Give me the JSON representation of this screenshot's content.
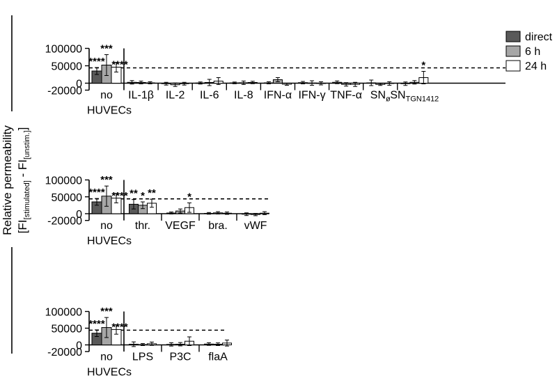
{
  "ylabel_line1": "Relative permeability",
  "ylabel_line2_parts": [
    "[FI",
    "[stimulated]",
    " - FI",
    "[unstim.]",
    "]"
  ],
  "legend": {
    "position": "top-right",
    "entries": [
      {
        "label": "direct",
        "color": "#595959"
      },
      {
        "label": "6 h",
        "color": "#a6a6a6"
      },
      {
        "label": "24 h",
        "color": "#ffffff"
      }
    ]
  },
  "colors": {
    "direct": "#595959",
    "6h": "#a6a6a6",
    "24h": "#ffffff",
    "ink": "#000000"
  },
  "chart_data": [
    {
      "type": "bar",
      "title": "",
      "ylim": [
        -20000,
        100000
      ],
      "yticks": [
        -20000,
        0,
        50000,
        100000
      ],
      "ytick_labels": [
        "-20000",
        "0",
        "50000",
        "100000"
      ],
      "threshold": 44000,
      "categories": [
        {
          "label": "no",
          "label2": "HUVECs",
          "values": [
            35000,
            52000,
            46000
          ],
          "errors": [
            10000,
            30000,
            14000
          ],
          "sig": [
            "****",
            "***",
            "****"
          ]
        },
        {
          "label": "IL-1β",
          "values": [
            2500,
            2000,
            1000
          ],
          "errors": [
            5000,
            4000,
            3000
          ],
          "sig": [
            "",
            "",
            ""
          ]
        },
        {
          "label": "IL-2",
          "values": [
            -1500,
            -4500,
            -1500
          ],
          "errors": [
            4000,
            5000,
            4000
          ],
          "sig": [
            "",
            "",
            ""
          ]
        },
        {
          "label": "IL-6",
          "values": [
            500,
            2000,
            6000
          ],
          "errors": [
            3000,
            9000,
            10000
          ],
          "sig": [
            "",
            "",
            ""
          ]
        },
        {
          "label": "IL-8",
          "values": [
            800,
            1200,
            2000
          ],
          "errors": [
            2500,
            5000,
            3500
          ],
          "sig": [
            "",
            "",
            ""
          ]
        },
        {
          "label": "IFN-α",
          "values": [
            1000,
            10000,
            -3000
          ],
          "errors": [
            3000,
            6000,
            3000
          ],
          "sig": [
            "",
            "",
            ""
          ]
        },
        {
          "label": "IFN-γ",
          "values": [
            1500,
            500,
            -500
          ],
          "errors": [
            3500,
            6500,
            4500
          ],
          "sig": [
            "",
            "",
            ""
          ]
        },
        {
          "label": "TNF-α",
          "values": [
            2500,
            -3500,
            -3500
          ],
          "errors": [
            4000,
            5000,
            6000
          ],
          "sig": [
            "",
            "",
            ""
          ]
        },
        {
          "label": "SN",
          "sub": "ø",
          "values": [
            1000,
            -3500,
            -1000
          ],
          "errors": [
            8000,
            3000,
            5000
          ],
          "sig": [
            "",
            "",
            ""
          ]
        },
        {
          "label": "SN",
          "sub": "TGN1412",
          "values": [
            -1500,
            2500,
            16000
          ],
          "errors": [
            5000,
            5000,
            18000
          ],
          "sig": [
            "",
            "",
            "*"
          ]
        }
      ]
    },
    {
      "type": "bar",
      "title": "",
      "ylim": [
        -20000,
        100000
      ],
      "yticks": [
        -20000,
        0,
        50000,
        100000
      ],
      "ytick_labels": [
        "-20000",
        "0",
        "50000",
        "100000"
      ],
      "threshold": 44000,
      "categories": [
        {
          "label": "no",
          "label2": "HUVECs",
          "values": [
            35000,
            52000,
            46000
          ],
          "errors": [
            10000,
            30000,
            14000
          ],
          "sig": [
            "****",
            "***",
            "****"
          ]
        },
        {
          "label": "thr.",
          "values": [
            28000,
            25000,
            31000
          ],
          "errors": [
            14000,
            10000,
            12000
          ],
          "sig": [
            "**",
            "*",
            "**"
          ]
        },
        {
          "label": "VEGF",
          "values": [
            2000,
            8000,
            18000
          ],
          "errors": [
            3000,
            6000,
            14000
          ],
          "sig": [
            "",
            "",
            "*"
          ]
        },
        {
          "label": "bra.",
          "values": [
            1000,
            2500,
            1500
          ],
          "errors": [
            2500,
            3500,
            3500
          ],
          "sig": [
            "",
            "",
            ""
          ]
        },
        {
          "label": "vWF",
          "values": [
            -1500,
            -2500,
            1500
          ],
          "errors": [
            4000,
            3500,
            4500
          ],
          "sig": [
            "",
            "",
            ""
          ]
        }
      ]
    },
    {
      "type": "bar",
      "title": "",
      "ylim": [
        -20000,
        100000
      ],
      "yticks": [
        -20000,
        0,
        50000,
        100000
      ],
      "ytick_labels": [
        "-20000",
        "0",
        "50000",
        "100000"
      ],
      "threshold": 44000,
      "categories": [
        {
          "label": "no",
          "label2": "HUVECs",
          "values": [
            35000,
            52000,
            46000
          ],
          "errors": [
            10000,
            30000,
            14000
          ],
          "sig": [
            "****",
            "***",
            "****"
          ]
        },
        {
          "label": "LPS",
          "values": [
            2000,
            1000,
            3500
          ],
          "errors": [
            7000,
            3000,
            5000
          ],
          "sig": [
            "",
            "",
            ""
          ]
        },
        {
          "label": "P3C",
          "values": [
            1500,
            2000,
            11000
          ],
          "errors": [
            5000,
            5000,
            13000
          ],
          "sig": [
            "",
            "",
            ""
          ]
        },
        {
          "label": "flaA",
          "values": [
            2500,
            2000,
            5500
          ],
          "errors": [
            4000,
            4000,
            9000
          ],
          "sig": [
            "",
            "",
            ""
          ]
        }
      ]
    }
  ]
}
